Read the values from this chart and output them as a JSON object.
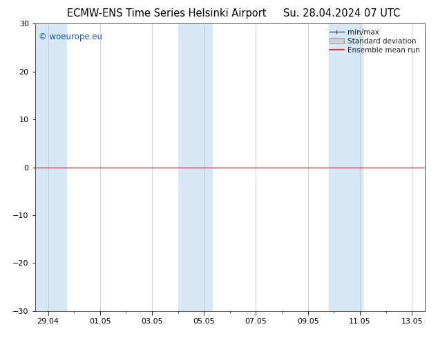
{
  "title_left": "ECMW-ENS Time Series Helsinki Airport",
  "title_right": "Su. 28.04.2024 07 UTC",
  "watermark": "© woeurope.eu",
  "ylim": [
    -30,
    30
  ],
  "yticks": [
    -30,
    -20,
    -10,
    0,
    10,
    20,
    30
  ],
  "x_tick_labels": [
    "29.04",
    "01.05",
    "03.05",
    "05.05",
    "07.05",
    "09.05",
    "11.05",
    "13.05"
  ],
  "x_tick_positions": [
    0,
    2,
    4,
    6,
    8,
    10,
    12,
    14
  ],
  "xlim": [
    -0.5,
    14.5
  ],
  "bg_color": "#ffffff",
  "plot_bg_color": "#ffffff",
  "blue_band_color": "#d6e8f5",
  "zero_line_color": "#ff0000",
  "grid_color": "#bbbbbb",
  "legend_minmax_color": "#555555",
  "legend_std_color": "#cccccc",
  "legend_mean_color": "#ff0000",
  "blue_bands": [
    [
      -0.5,
      0.7
    ],
    [
      5.0,
      5.5
    ],
    [
      5.5,
      6.3
    ],
    [
      10.8,
      11.3
    ],
    [
      11.3,
      12.1
    ]
  ],
  "title_fontsize": 10.5,
  "watermark_fontsize": 8.5,
  "tick_fontsize": 8,
  "legend_fontsize": 7.5
}
